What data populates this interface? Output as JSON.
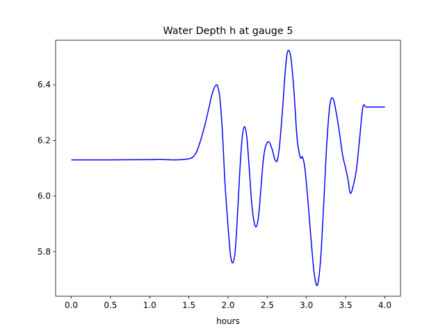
{
  "chart_data": {
    "type": "line",
    "title": "Water Depth h at gauge 5",
    "xlabel": "hours",
    "ylabel": "",
    "xlim": [
      -0.2,
      4.2
    ],
    "ylim": [
      5.64,
      6.56
    ],
    "xticks": [
      0.0,
      0.5,
      1.0,
      1.5,
      2.0,
      2.5,
      3.0,
      3.5,
      4.0
    ],
    "xtick_labels": [
      "0.0",
      "0.5",
      "1.0",
      "1.5",
      "2.0",
      "2.5",
      "3.0",
      "3.5",
      "4.0"
    ],
    "yticks": [
      5.8,
      6.0,
      6.2,
      6.4
    ],
    "ytick_labels": [
      "5.8",
      "6.0",
      "6.2",
      "6.4"
    ],
    "grid": false,
    "legend": "none",
    "series": [
      {
        "color": "#0000ff",
        "x": [
          0.0,
          0.5,
          1.0,
          1.1,
          1.2,
          1.3,
          1.4,
          1.5,
          1.55,
          1.6,
          1.65,
          1.7,
          1.75,
          1.8,
          1.85,
          1.88,
          1.9,
          1.93,
          1.96,
          2.0,
          2.03,
          2.06,
          2.09,
          2.12,
          2.15,
          2.18,
          2.21,
          2.24,
          2.27,
          2.3,
          2.33,
          2.36,
          2.39,
          2.42,
          2.45,
          2.48,
          2.52,
          2.56,
          2.6,
          2.63,
          2.66,
          2.7,
          2.73,
          2.76,
          2.8,
          2.84,
          2.88,
          2.92,
          2.95,
          2.98,
          3.02,
          3.06,
          3.1,
          3.14,
          3.18,
          3.22,
          3.26,
          3.3,
          3.34,
          3.38,
          3.42,
          3.46,
          3.5,
          3.53,
          3.56,
          3.6,
          3.64,
          3.68,
          3.72,
          3.76,
          3.8,
          3.83,
          3.86,
          3.9,
          3.94,
          3.97,
          4.0
        ],
        "y": [
          6.13,
          6.13,
          6.131,
          6.132,
          6.131,
          6.13,
          6.131,
          6.134,
          6.14,
          6.16,
          6.2,
          6.25,
          6.31,
          6.37,
          6.4,
          6.38,
          6.34,
          6.22,
          6.05,
          5.89,
          5.79,
          5.76,
          5.8,
          5.93,
          6.09,
          6.21,
          6.25,
          6.21,
          6.1,
          5.98,
          5.91,
          5.89,
          5.93,
          6.03,
          6.13,
          6.18,
          6.195,
          6.17,
          6.13,
          6.13,
          6.19,
          6.33,
          6.45,
          6.52,
          6.5,
          6.38,
          6.21,
          6.14,
          6.14,
          6.1,
          5.98,
          5.84,
          5.72,
          5.68,
          5.77,
          5.97,
          6.19,
          6.33,
          6.35,
          6.3,
          6.23,
          6.15,
          6.1,
          6.06,
          6.01,
          6.04,
          6.1,
          6.21,
          6.32,
          6.32,
          6.32,
          6.32,
          6.32,
          6.32,
          6.32,
          6.32,
          6.32
        ]
      }
    ]
  }
}
